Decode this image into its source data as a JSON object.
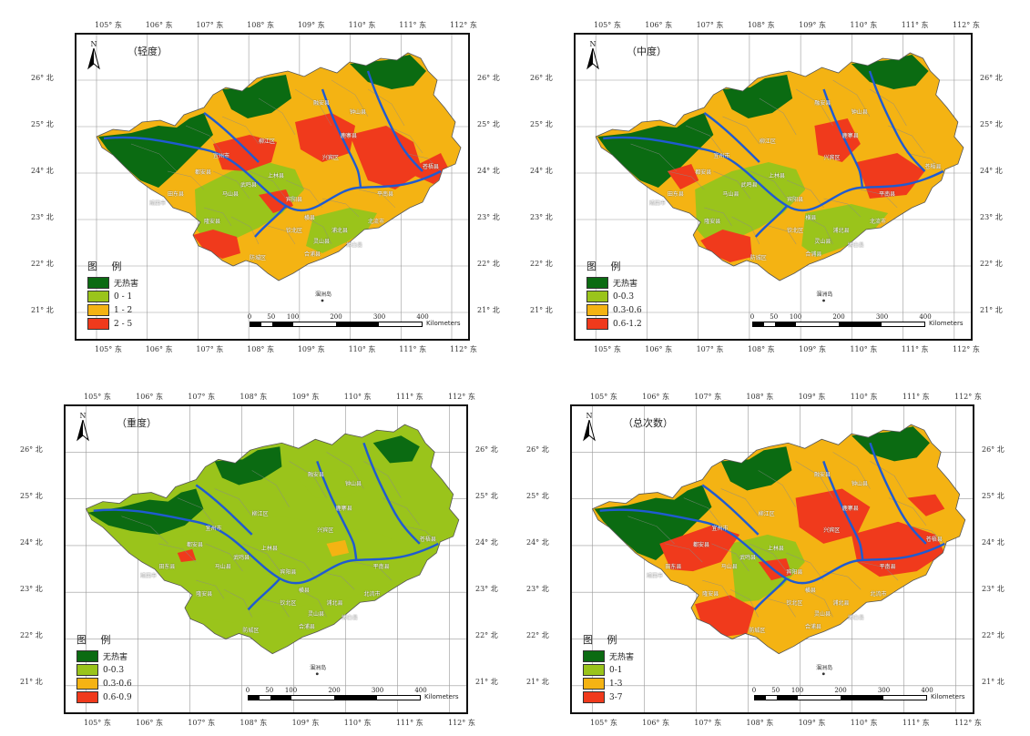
{
  "panels": [
    {
      "id": "light",
      "title": "（轻度）",
      "legend": [
        {
          "label": "无热害",
          "color": "#0b6b12"
        },
        {
          "label": "0 - 1",
          "color": "#9ac41b"
        },
        {
          "label": "1 - 2",
          "color": "#f4b313"
        },
        {
          "label": "2 - 5",
          "color": "#f03a1c"
        }
      ],
      "scale": {
        "labels": [
          "0",
          "50",
          "100",
          "200",
          "300",
          "400"
        ],
        "unit": "Kilometers"
      }
    },
    {
      "id": "moderate",
      "title": "（中度）",
      "legend": [
        {
          "label": "无热害",
          "color": "#0b6b12"
        },
        {
          "label": "0-0.3",
          "color": "#9ac41b"
        },
        {
          "label": "0.3-0.6",
          "color": "#f4b313"
        },
        {
          "label": "0.6-1.2",
          "color": "#f03a1c"
        }
      ],
      "scale": {
        "labels": [
          "0",
          "50",
          "100",
          "200",
          "300",
          "400"
        ],
        "unit": "Kilometers"
      }
    },
    {
      "id": "severe",
      "title": "（重度）",
      "legend": [
        {
          "label": "无热害",
          "color": "#0b6b12"
        },
        {
          "label": "0-0.3",
          "color": "#9ac41b"
        },
        {
          "label": "0.3-0.6",
          "color": "#f4b313"
        },
        {
          "label": "0.6-0.9",
          "color": "#f03a1c"
        }
      ],
      "scale": {
        "labels": [
          "0",
          "50",
          "100",
          "200",
          "300",
          "400"
        ],
        "unit": "Kilometers"
      }
    },
    {
      "id": "total",
      "title": "（总次数）",
      "legend": [
        {
          "label": "无热害",
          "color": "#0b6b12"
        },
        {
          "label": "0-1",
          "color": "#9ac41b"
        },
        {
          "label": "1-3",
          "color": "#f4b313"
        },
        {
          "label": "3-7",
          "color": "#f03a1c"
        }
      ],
      "scale": {
        "labels": [
          "0",
          "50",
          "100",
          "200",
          "300",
          "400"
        ],
        "unit": "Kilometers"
      }
    }
  ],
  "legend_title": "图  例",
  "north_label": "N",
  "lon_ticks": [
    "105°  东",
    "106°  东",
    "107°  东",
    "108°  东",
    "109°  东",
    "110°  东",
    "111°  东",
    "112°  东"
  ],
  "lat_ticks": [
    "26°  北",
    "25°  北",
    "24°  北",
    "23°  北",
    "22°  北",
    "21°  北"
  ],
  "island_label": "涠洲岛",
  "place_names": [
    "柳江区",
    "宜州市",
    "都安县",
    "马山县",
    "武鸣县",
    "宾阳县",
    "上林县",
    "横县",
    "北流市",
    "钦北区",
    "灵山县",
    "合浦县",
    "博白县",
    "兴宾区",
    "平南县",
    "苍梧县",
    "钟山县",
    "鹿寨县",
    "融安县",
    "浦北县",
    "隆安县",
    "田东县",
    "靖西市",
    "防城区"
  ]
}
